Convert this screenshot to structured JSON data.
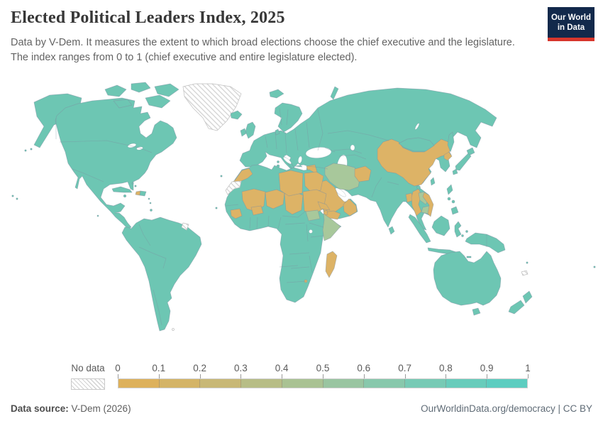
{
  "header": {
    "title": "Elected Political Leaders Index, 2025",
    "subtitle_line1": "Data by V-Dem. It measures the extent to which broad elections choose the chief executive and the legislature.",
    "subtitle_line2": "The index ranges from 0 to 1 (chief executive and entire legislature elected).",
    "logo": {
      "line1": "Our World",
      "line2": "in Data",
      "bg_color": "#12294b",
      "accent_color": "#d7362c"
    }
  },
  "legend": {
    "no_data_label": "No data",
    "ticks": [
      "0",
      "0.1",
      "0.2",
      "0.3",
      "0.4",
      "0.5",
      "0.6",
      "0.7",
      "0.8",
      "0.9",
      "1"
    ],
    "bin_colors": [
      "#ddb15c",
      "#d4b467",
      "#c8b876",
      "#b7bd86",
      "#a9c293",
      "#99c5a1",
      "#88c8ac",
      "#77cab5",
      "#68ccbb",
      "#5dcdc0"
    ]
  },
  "footer": {
    "source_label": "Data source:",
    "source_value": " V-Dem (2026)",
    "right_text": "OurWorldinData.org/democracy | CC BY"
  },
  "chart_data": {
    "type": "choropleth_map",
    "title": "Elected Political Leaders Index, 2025",
    "metric": "Elected Political Leaders Index (V-Dem)",
    "year": 2025,
    "source": "V-Dem (2026)",
    "scale": {
      "min": 0,
      "max": 1,
      "tick_step": 0.1,
      "ticks": [
        0,
        0.1,
        0.2,
        0.3,
        0.4,
        0.5,
        0.6,
        0.7,
        0.8,
        0.9,
        1
      ],
      "bin_colors": [
        "#ddb15c",
        "#d4b467",
        "#c8b876",
        "#b7bd86",
        "#a9c293",
        "#99c5a1",
        "#88c8ac",
        "#77cab5",
        "#68ccbb",
        "#5dcdc0"
      ],
      "no_data_style": "white with gray diagonal hatching",
      "map_colors": {
        "high": "#6dc6b3",
        "mid": "#a8c89b",
        "low": "#ddb366",
        "border": "#7d90a0",
        "sea": "#ffffff"
      }
    },
    "regions": {
      "low_tan_approx_0_to_0.3": [
        "Morocco",
        "Mali",
        "Burkina Faso",
        "Guinea",
        "Niger",
        "Chad",
        "Libya",
        "Egypt",
        "Sudan",
        "Eritrea",
        "Djibouti",
        "Madagascar",
        "Eswatini",
        "Haiti",
        "Saudi Arabia",
        "Yemen",
        "Oman",
        "United Arab Emirates",
        "Qatar",
        "Kuwait",
        "Bahrain",
        "Jordan",
        "Syria",
        "Afghanistan",
        "China",
        "North Korea",
        "Myanmar",
        "Vietnam",
        "Bangladesh"
      ],
      "mid_green_approx_0.4_to_0.6": [
        "Iran",
        "Somalia",
        "South Sudan",
        "Laos",
        "Cambodia"
      ],
      "high_teal_approx_0.7_to_1": [
        "United States",
        "Canada",
        "Mexico",
        "Cuba",
        "Dominican Republic",
        "Brazil",
        "Argentina",
        "Chile",
        "Peru",
        "Colombia",
        "Venezuela",
        "United Kingdom",
        "Ireland",
        "France",
        "Spain",
        "Portugal",
        "Germany",
        "Italy",
        "Poland",
        "Ukraine",
        "Russia",
        "Turkey",
        "Israel",
        "Iraq",
        "Georgia",
        "Armenia",
        "Azerbaijan",
        "Kazakhstan",
        "Uzbekistan",
        "Turkmenistan",
        "Mongolia",
        "India",
        "Pakistan",
        "Nepal",
        "Sri Lanka",
        "Thailand",
        "Malaysia",
        "Indonesia",
        "Philippines",
        "Japan",
        "South Korea",
        "Australia",
        "New Zealand",
        "Papua New Guinea",
        "Nigeria",
        "Ghana",
        "Senegal",
        "Mauritania",
        "Algeria",
        "Tunisia",
        "Ethiopia",
        "Kenya",
        "Tanzania",
        "DR Congo",
        "Angola",
        "Zambia",
        "Zimbabwe",
        "Mozambique",
        "Botswana",
        "Namibia",
        "South Africa",
        "and most other countries"
      ],
      "no_data_hatched": [
        "Greenland",
        "Western Sahara",
        "French Guiana",
        "New Caledonia"
      ],
      "note": "Values estimated by matching country fill colors to the legend gradient; no numeric labels are shown on the map."
    }
  }
}
